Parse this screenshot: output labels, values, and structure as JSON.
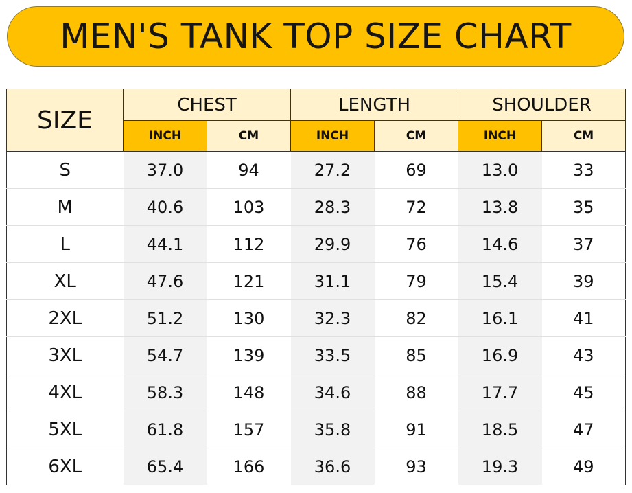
{
  "title": "MEN'S TANK TOP SIZE CHART",
  "header": {
    "size": "SIZE",
    "groups": [
      "CHEST",
      "LENGTH",
      "SHOULDER"
    ],
    "units": [
      "INCH",
      "CM",
      "INCH",
      "CM",
      "INCH",
      "CM"
    ]
  },
  "colors": {
    "accent": "#ffc000",
    "header_light": "#fff2cc",
    "inch_column": "#f2f2f2"
  },
  "rows": [
    {
      "size": "S",
      "values": [
        "37.0",
        "94",
        "27.2",
        "69",
        "13.0",
        "33"
      ]
    },
    {
      "size": "M",
      "values": [
        "40.6",
        "103",
        "28.3",
        "72",
        "13.8",
        "35"
      ]
    },
    {
      "size": "L",
      "values": [
        "44.1",
        "112",
        "29.9",
        "76",
        "14.6",
        "37"
      ]
    },
    {
      "size": "XL",
      "values": [
        "47.6",
        "121",
        "31.1",
        "79",
        "15.4",
        "39"
      ]
    },
    {
      "size": "2XL",
      "values": [
        "51.2",
        "130",
        "32.3",
        "82",
        "16.1",
        "41"
      ]
    },
    {
      "size": "3XL",
      "values": [
        "54.7",
        "139",
        "33.5",
        "85",
        "16.9",
        "43"
      ]
    },
    {
      "size": "4XL",
      "values": [
        "58.3",
        "148",
        "34.6",
        "88",
        "17.7",
        "45"
      ]
    },
    {
      "size": "5XL",
      "values": [
        "61.8",
        "157",
        "35.8",
        "91",
        "18.5",
        "47"
      ]
    },
    {
      "size": "6XL",
      "values": [
        "65.4",
        "166",
        "36.6",
        "93",
        "19.3",
        "49"
      ]
    }
  ]
}
